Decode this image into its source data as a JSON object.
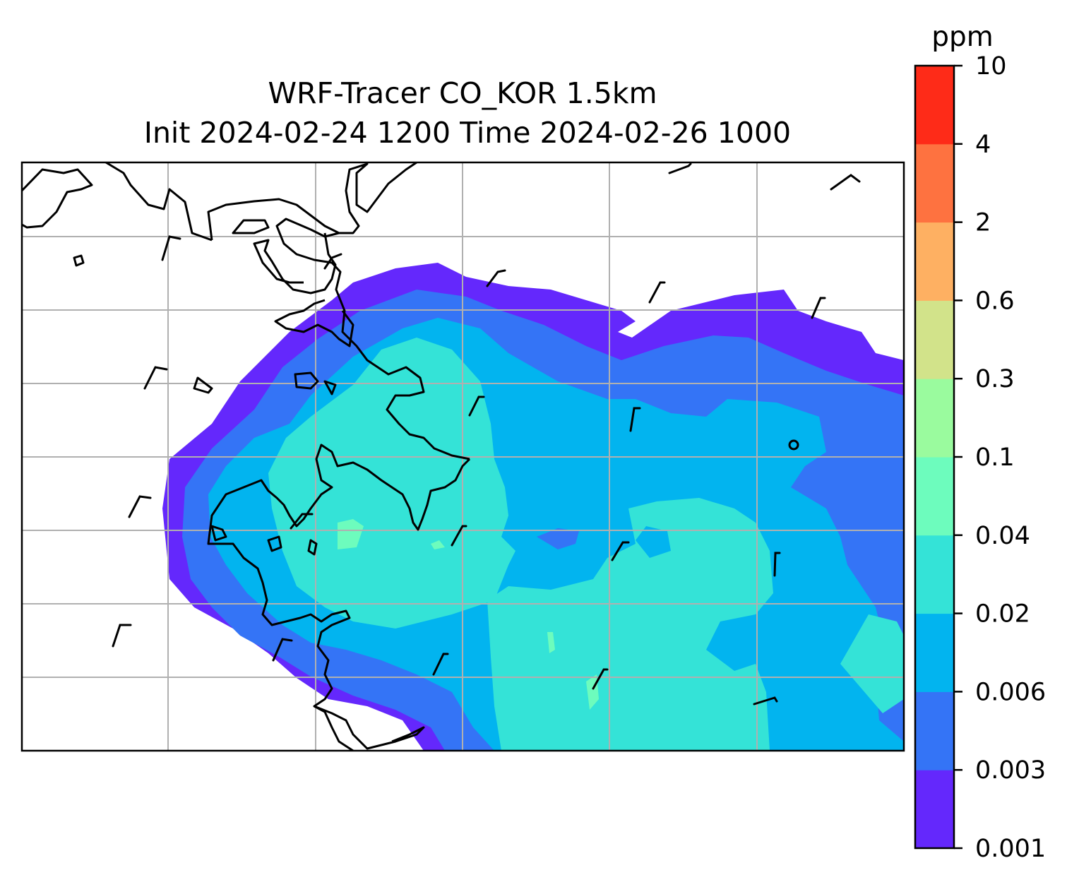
{
  "title": {
    "line1": "WRF-Tracer CO_KOR 1.5km",
    "line2": "Init 2024-02-24 1200 Time 2024-02-26 1000"
  },
  "colorbar": {
    "unit": "ppm",
    "levels": [
      "0.001",
      "0.003",
      "0.006",
      "0.02",
      "0.04",
      "0.1",
      "0.3",
      "0.6",
      "2",
      "4",
      "10"
    ],
    "colors": [
      "#6428fc",
      "#3474f6",
      "#02b4ef",
      "#34e3d7",
      "#6dfcbd",
      "#9afb9e",
      "#d2e38a",
      "#feb062",
      "#fe7240",
      "#fe2b18"
    ]
  },
  "map": {
    "gridlines": true,
    "gridline_color": "#b0b0b0",
    "coastline_color": "#000000",
    "wind_barbs": true
  }
}
